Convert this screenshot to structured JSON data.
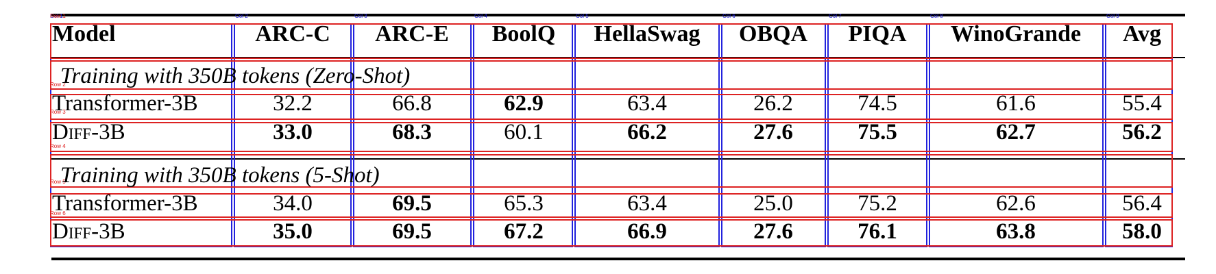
{
  "table": {
    "columns": [
      "Model",
      "ARC-C",
      "ARC-E",
      "BoolQ",
      "HellaSwag",
      "OBQA",
      "PIQA",
      "WinoGrande",
      "Avg"
    ],
    "sections": [
      {
        "title": "Training with 350B tokens (Zero-Shot)",
        "rows": [
          {
            "model": "Transformer-3B",
            "values": [
              "32.2",
              "66.8",
              "62.9",
              "63.4",
              "26.2",
              "74.5",
              "61.6",
              "55.4"
            ],
            "bold": [
              false,
              false,
              true,
              false,
              false,
              false,
              false,
              false
            ]
          },
          {
            "model": "DIFF-3B",
            "values": [
              "33.0",
              "68.3",
              "60.1",
              "66.2",
              "27.6",
              "75.5",
              "62.7",
              "56.2"
            ],
            "bold": [
              true,
              true,
              false,
              true,
              true,
              true,
              true,
              true
            ]
          }
        ]
      },
      {
        "title": "Training with 350B tokens (5-Shot)",
        "rows": [
          {
            "model": "Transformer-3B",
            "values": [
              "34.0",
              "69.5",
              "65.3",
              "63.4",
              "25.0",
              "75.2",
              "62.6",
              "56.4"
            ],
            "bold": [
              false,
              true,
              false,
              false,
              false,
              false,
              false,
              false
            ]
          },
          {
            "model": "DIFF-3B",
            "values": [
              "35.0",
              "69.5",
              "67.2",
              "66.9",
              "27.6",
              "76.1",
              "63.8",
              "58.0"
            ],
            "bold": [
              true,
              true,
              true,
              true,
              true,
              true,
              true,
              true
            ]
          }
        ]
      }
    ]
  },
  "overlay": {
    "column_tags": [
      "Col 1",
      "Col 2",
      "Col 3",
      "Col 4",
      "Col 5",
      "Col 6",
      "Col 7",
      "Col 8",
      "Col 9"
    ],
    "row_tags": [
      "Row 1",
      "Row 2",
      "Row 3",
      "Row 4",
      "Row 5",
      "Row 6"
    ],
    "column_color": "#2222dd",
    "row_color": "#dd2222"
  }
}
